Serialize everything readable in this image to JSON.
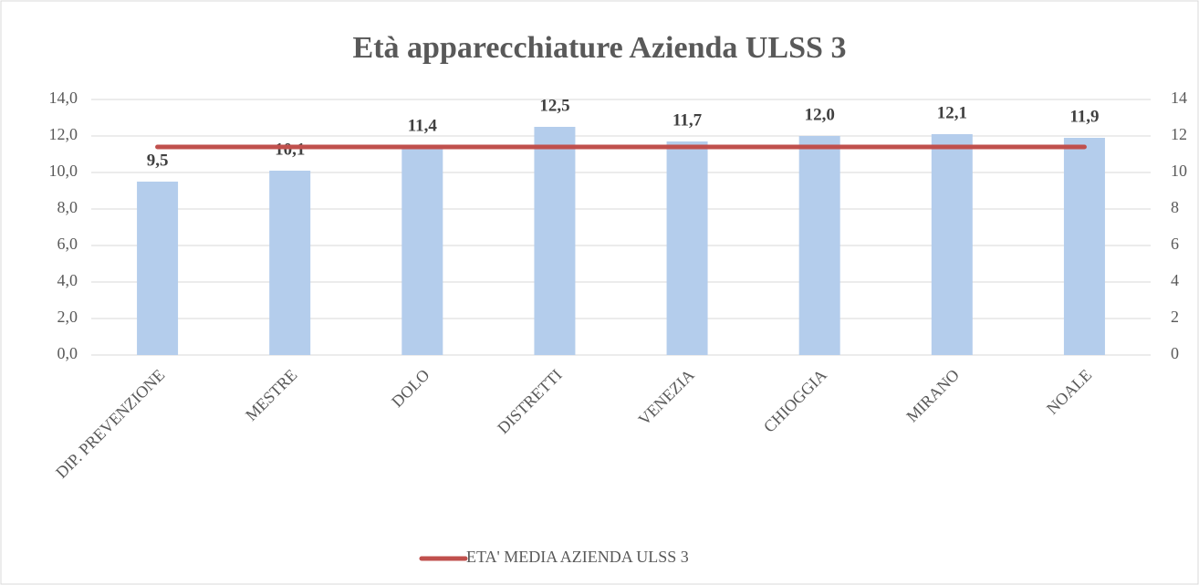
{
  "chart_data": {
    "type": "bar",
    "title": "Età apparecchiature Azienda ULSS 3",
    "categories": [
      "DIP. PREVENZIONE",
      "MESTRE",
      "DOLO",
      "DISTRETTI",
      "VENEZIA",
      "CHIOGGIA",
      "MIRANO",
      "NOALE"
    ],
    "series": [
      {
        "color": "#b4cdec",
        "values": [
          9.5,
          10.1,
          11.4,
          12.5,
          11.7,
          12.0,
          12.1,
          11.9
        ],
        "value_labels": [
          "9,5",
          "10,1",
          "11,4",
          "12,5",
          "11,7",
          "12,0",
          "12,1",
          "11,9"
        ]
      },
      {
        "name": "ETA' MEDIA AZIENDA ULSS 3",
        "type": "line",
        "axis": "y2",
        "color": "#c0504d",
        "values": [
          11.4,
          11.4,
          11.4,
          11.4,
          11.4,
          11.4,
          11.4,
          11.4
        ]
      }
    ],
    "ylim": [
      0,
      14
    ],
    "yticks": [
      {
        "value": 0,
        "label": "0,0"
      },
      {
        "value": 2,
        "label": "2,0"
      },
      {
        "value": 4,
        "label": "4,0"
      },
      {
        "value": 6,
        "label": "6,0"
      },
      {
        "value": 8,
        "label": "8,0"
      },
      {
        "value": 10,
        "label": "10,0"
      },
      {
        "value": 12,
        "label": "12,0"
      },
      {
        "value": 14,
        "label": "14,0"
      }
    ],
    "y2lim": [
      0,
      14
    ],
    "y2ticks": [
      0,
      2,
      4,
      6,
      8,
      10,
      12,
      14
    ],
    "grid": true,
    "legend": "bottom"
  }
}
